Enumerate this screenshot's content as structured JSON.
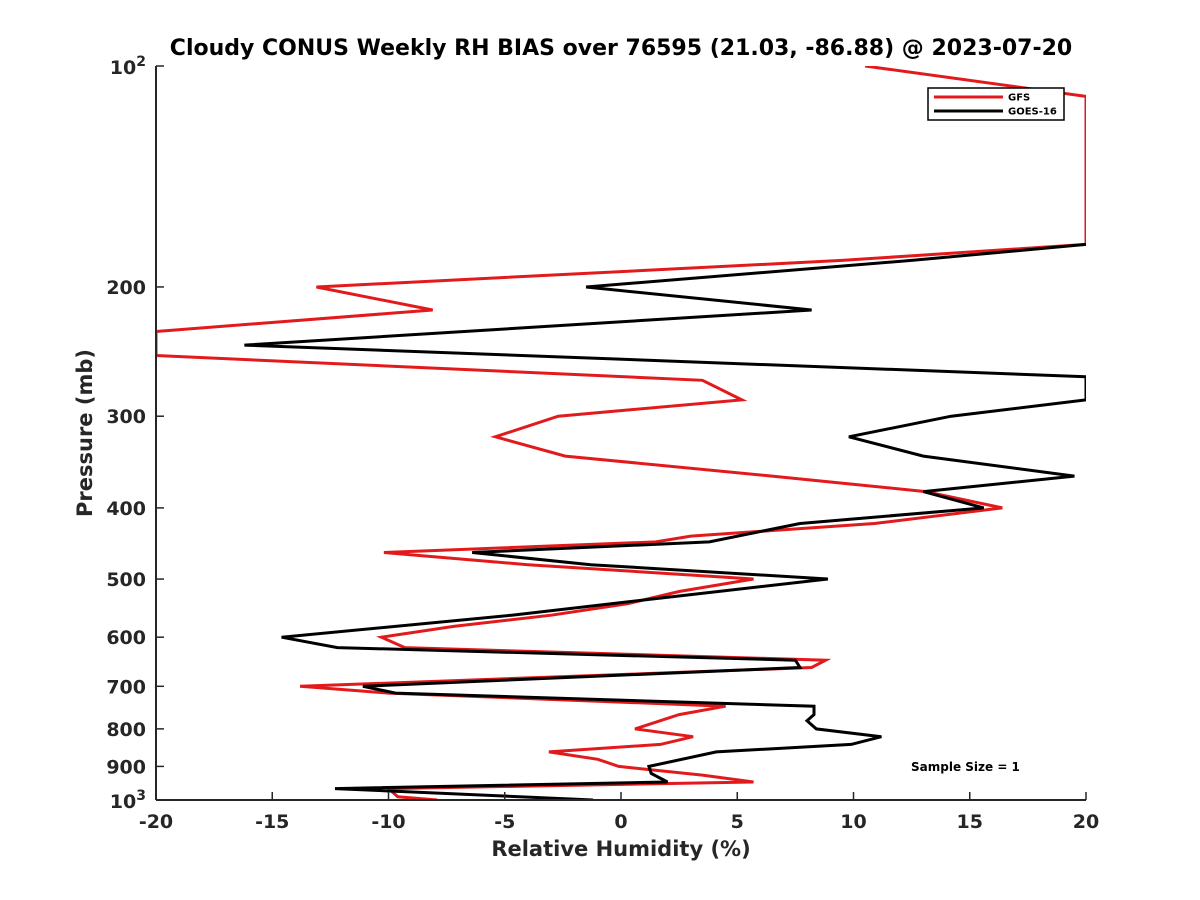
{
  "chart_data": {
    "type": "line",
    "title": "Cloudy CONUS Weekly RH BIAS over 76595 (21.03, -86.88) @ 2023-07-20",
    "xlabel": "Relative Humidity (%)",
    "ylabel": "Pressure (mb)",
    "xlim": [
      -20,
      20
    ],
    "ylim": [
      100,
      1000
    ],
    "yscale": "log",
    "y_reversed": true,
    "grid": false,
    "legend_position": "top-right",
    "annotation": "Sample Size = 1",
    "x_ticks": [
      -20,
      -15,
      -10,
      -5,
      0,
      5,
      10,
      15,
      20
    ],
    "x_tick_labels": [
      "-20",
      "-15",
      "-10",
      "-5",
      "0",
      "5",
      "10",
      "15",
      "20"
    ],
    "y_ticks": [
      100,
      200,
      300,
      400,
      500,
      600,
      700,
      800,
      900,
      1000
    ],
    "y_tick_labels": [
      "",
      "200",
      "300",
      "400",
      "500",
      "600",
      "700",
      "800",
      "900",
      ""
    ],
    "y_ticks_exponent": [
      {
        "value": 100,
        "base": "10",
        "exp": "2"
      },
      {
        "value": 1000,
        "base": "10",
        "exp": "3"
      }
    ],
    "series": [
      {
        "name": "GFS",
        "color": "#e31a1c",
        "points": [
          {
            "rh": 10.5,
            "p": 100
          },
          {
            "rh": 20,
            "p": 110
          },
          {
            "rh": 20,
            "p": 175
          },
          {
            "rh": 9.5,
            "p": 184
          },
          {
            "rh": -13.1,
            "p": 200
          },
          {
            "rh": -8.1,
            "p": 215
          },
          {
            "rh": -20,
            "p": 230
          },
          {
            "rh": -20,
            "p": 248
          },
          {
            "rh": 3.5,
            "p": 268
          },
          {
            "rh": 5.2,
            "p": 285
          },
          {
            "rh": -2.7,
            "p": 300
          },
          {
            "rh": -5.4,
            "p": 320
          },
          {
            "rh": -2.4,
            "p": 340
          },
          {
            "rh": 6.5,
            "p": 362
          },
          {
            "rh": 13.1,
            "p": 380
          },
          {
            "rh": 16.4,
            "p": 400
          },
          {
            "rh": 10.9,
            "p": 420
          },
          {
            "rh": 3.0,
            "p": 437
          },
          {
            "rh": 1.5,
            "p": 445
          },
          {
            "rh": -10.2,
            "p": 460
          },
          {
            "rh": -4.0,
            "p": 478
          },
          {
            "rh": 5.7,
            "p": 500
          },
          {
            "rh": 2.5,
            "p": 520
          },
          {
            "rh": 0.3,
            "p": 540
          },
          {
            "rh": -3.0,
            "p": 560
          },
          {
            "rh": -7.2,
            "p": 580
          },
          {
            "rh": -10.3,
            "p": 600
          },
          {
            "rh": -9.3,
            "p": 620
          },
          {
            "rh": 8.8,
            "p": 645
          },
          {
            "rh": 8.2,
            "p": 660
          },
          {
            "rh": -13.8,
            "p": 700
          },
          {
            "rh": -10.0,
            "p": 715
          },
          {
            "rh": 4.5,
            "p": 745
          },
          {
            "rh": 2.5,
            "p": 765
          },
          {
            "rh": 0.6,
            "p": 800
          },
          {
            "rh": 3.1,
            "p": 820
          },
          {
            "rh": 1.7,
            "p": 840
          },
          {
            "rh": -3.1,
            "p": 860
          },
          {
            "rh": -1.0,
            "p": 880
          },
          {
            "rh": -0.1,
            "p": 900
          },
          {
            "rh": 3.5,
            "p": 925
          },
          {
            "rh": 5.7,
            "p": 945
          },
          {
            "rh": -10.0,
            "p": 965
          },
          {
            "rh": -9.6,
            "p": 990
          },
          {
            "rh": -7.9,
            "p": 1000
          }
        ]
      },
      {
        "name": "GOES-16",
        "color": "#000000",
        "points": [
          {
            "rh": 20,
            "p": 175
          },
          {
            "rh": 12.5,
            "p": 184
          },
          {
            "rh": -1.5,
            "p": 200
          },
          {
            "rh": 8.2,
            "p": 215
          },
          {
            "rh": -16.2,
            "p": 240
          },
          {
            "rh": 20,
            "p": 265
          },
          {
            "rh": 20,
            "p": 285
          },
          {
            "rh": 14.2,
            "p": 300
          },
          {
            "rh": 9.8,
            "p": 320
          },
          {
            "rh": 13.0,
            "p": 340
          },
          {
            "rh": 19.5,
            "p": 362
          },
          {
            "rh": 13.0,
            "p": 380
          },
          {
            "rh": 15.6,
            "p": 400
          },
          {
            "rh": 7.7,
            "p": 420
          },
          {
            "rh": 3.8,
            "p": 445
          },
          {
            "rh": -6.4,
            "p": 460
          },
          {
            "rh": -1.3,
            "p": 478
          },
          {
            "rh": 8.9,
            "p": 500
          },
          {
            "rh": 3.0,
            "p": 525
          },
          {
            "rh": -4.7,
            "p": 560
          },
          {
            "rh": -14.6,
            "p": 600
          },
          {
            "rh": -12.2,
            "p": 620
          },
          {
            "rh": 7.5,
            "p": 645
          },
          {
            "rh": 7.7,
            "p": 660
          },
          {
            "rh": -11.1,
            "p": 700
          },
          {
            "rh": -9.7,
            "p": 715
          },
          {
            "rh": 8.3,
            "p": 745
          },
          {
            "rh": 8.3,
            "p": 765
          },
          {
            "rh": 8.0,
            "p": 780
          },
          {
            "rh": 8.4,
            "p": 800
          },
          {
            "rh": 11.2,
            "p": 820
          },
          {
            "rh": 9.9,
            "p": 840
          },
          {
            "rh": 4.1,
            "p": 860
          },
          {
            "rh": 1.2,
            "p": 900
          },
          {
            "rh": 1.3,
            "p": 920
          },
          {
            "rh": 2.0,
            "p": 945
          },
          {
            "rh": -12.3,
            "p": 965
          },
          {
            "rh": -1.2,
            "p": 1000
          }
        ]
      }
    ]
  }
}
